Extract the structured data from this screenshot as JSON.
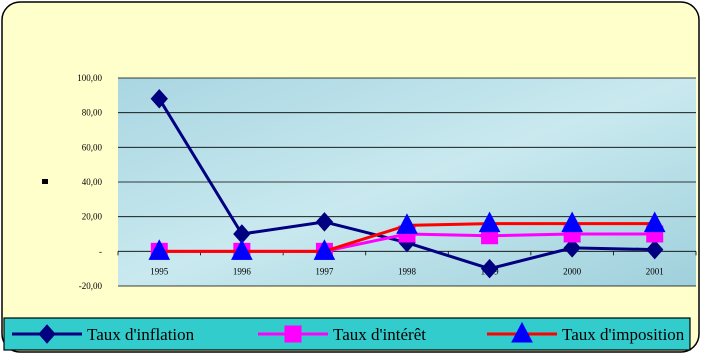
{
  "chart_data": {
    "type": "line",
    "categories": [
      "1995",
      "1996",
      "1997",
      "1998",
      "1999",
      "2000",
      "2001"
    ],
    "y_ticks": [
      "100,00",
      "80,00",
      "60,00",
      "40,00",
      "20,00",
      "-",
      "-20,00"
    ],
    "ylim": [
      -20,
      100
    ],
    "grid": true,
    "legend_position": "bottom",
    "series": [
      {
        "name": "Taux d'inflation",
        "values": [
          88,
          10,
          17,
          5,
          -10,
          2,
          1
        ],
        "color": "#000080",
        "marker": "diamond"
      },
      {
        "name": "Taux d'intérêt",
        "values": [
          0,
          0,
          0,
          10,
          9,
          10,
          10
        ],
        "color": "#ff00ff",
        "marker": "square"
      },
      {
        "name": "Taux d'imposition",
        "values": [
          0,
          0,
          0,
          15,
          16,
          16,
          16
        ],
        "color": "#ff0000",
        "marker": "triangle",
        "marker_color": "#0000ff"
      }
    ]
  },
  "colors": {
    "frame_bg": "#ffffcc",
    "plot_bg": "#b8dde6",
    "legend_bg": "#33cccc"
  }
}
